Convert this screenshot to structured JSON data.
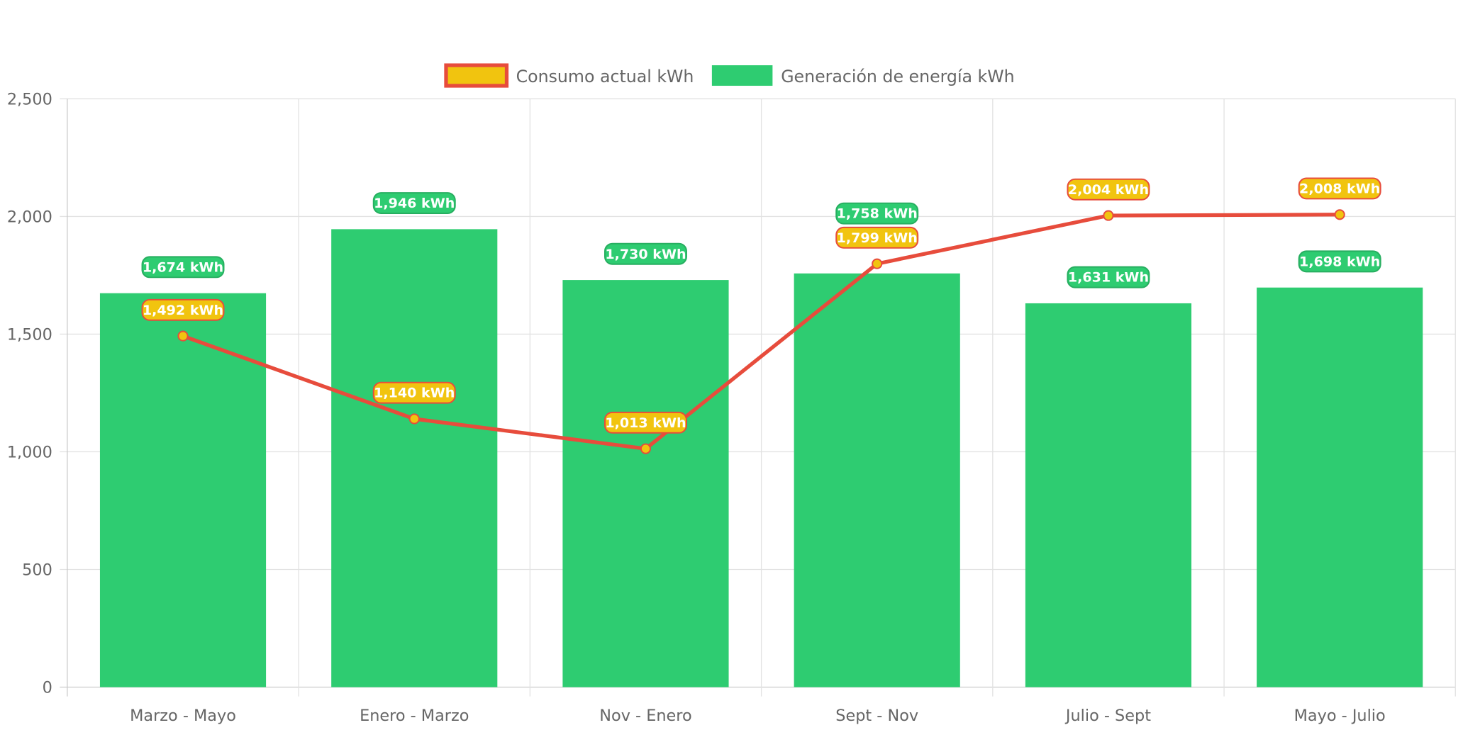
{
  "chart_data": {
    "type": "bar",
    "categories": [
      "Marzo - Mayo",
      "Enero - Marzo",
      "Nov - Enero",
      "Sept - Nov",
      "Julio - Sept",
      "Mayo - Julio"
    ],
    "series": [
      {
        "name": "Consumo actual kWh",
        "type": "line",
        "color": "#e74c3c",
        "fill": "#f1c40f",
        "values": [
          1492,
          1140,
          1013,
          1799,
          2004,
          2008
        ]
      },
      {
        "name": "Generación de energía kWh",
        "type": "bar",
        "color": "#2ecc71",
        "values": [
          1674,
          1946,
          1730,
          1758,
          1631,
          1698
        ]
      }
    ],
    "data_label_suffix": " kWh",
    "ylim": [
      0,
      2500
    ],
    "yticks": [
      "0",
      "500",
      "1,000",
      "1,500",
      "2,000",
      "2,500"
    ],
    "grid": true,
    "legend": "top"
  }
}
